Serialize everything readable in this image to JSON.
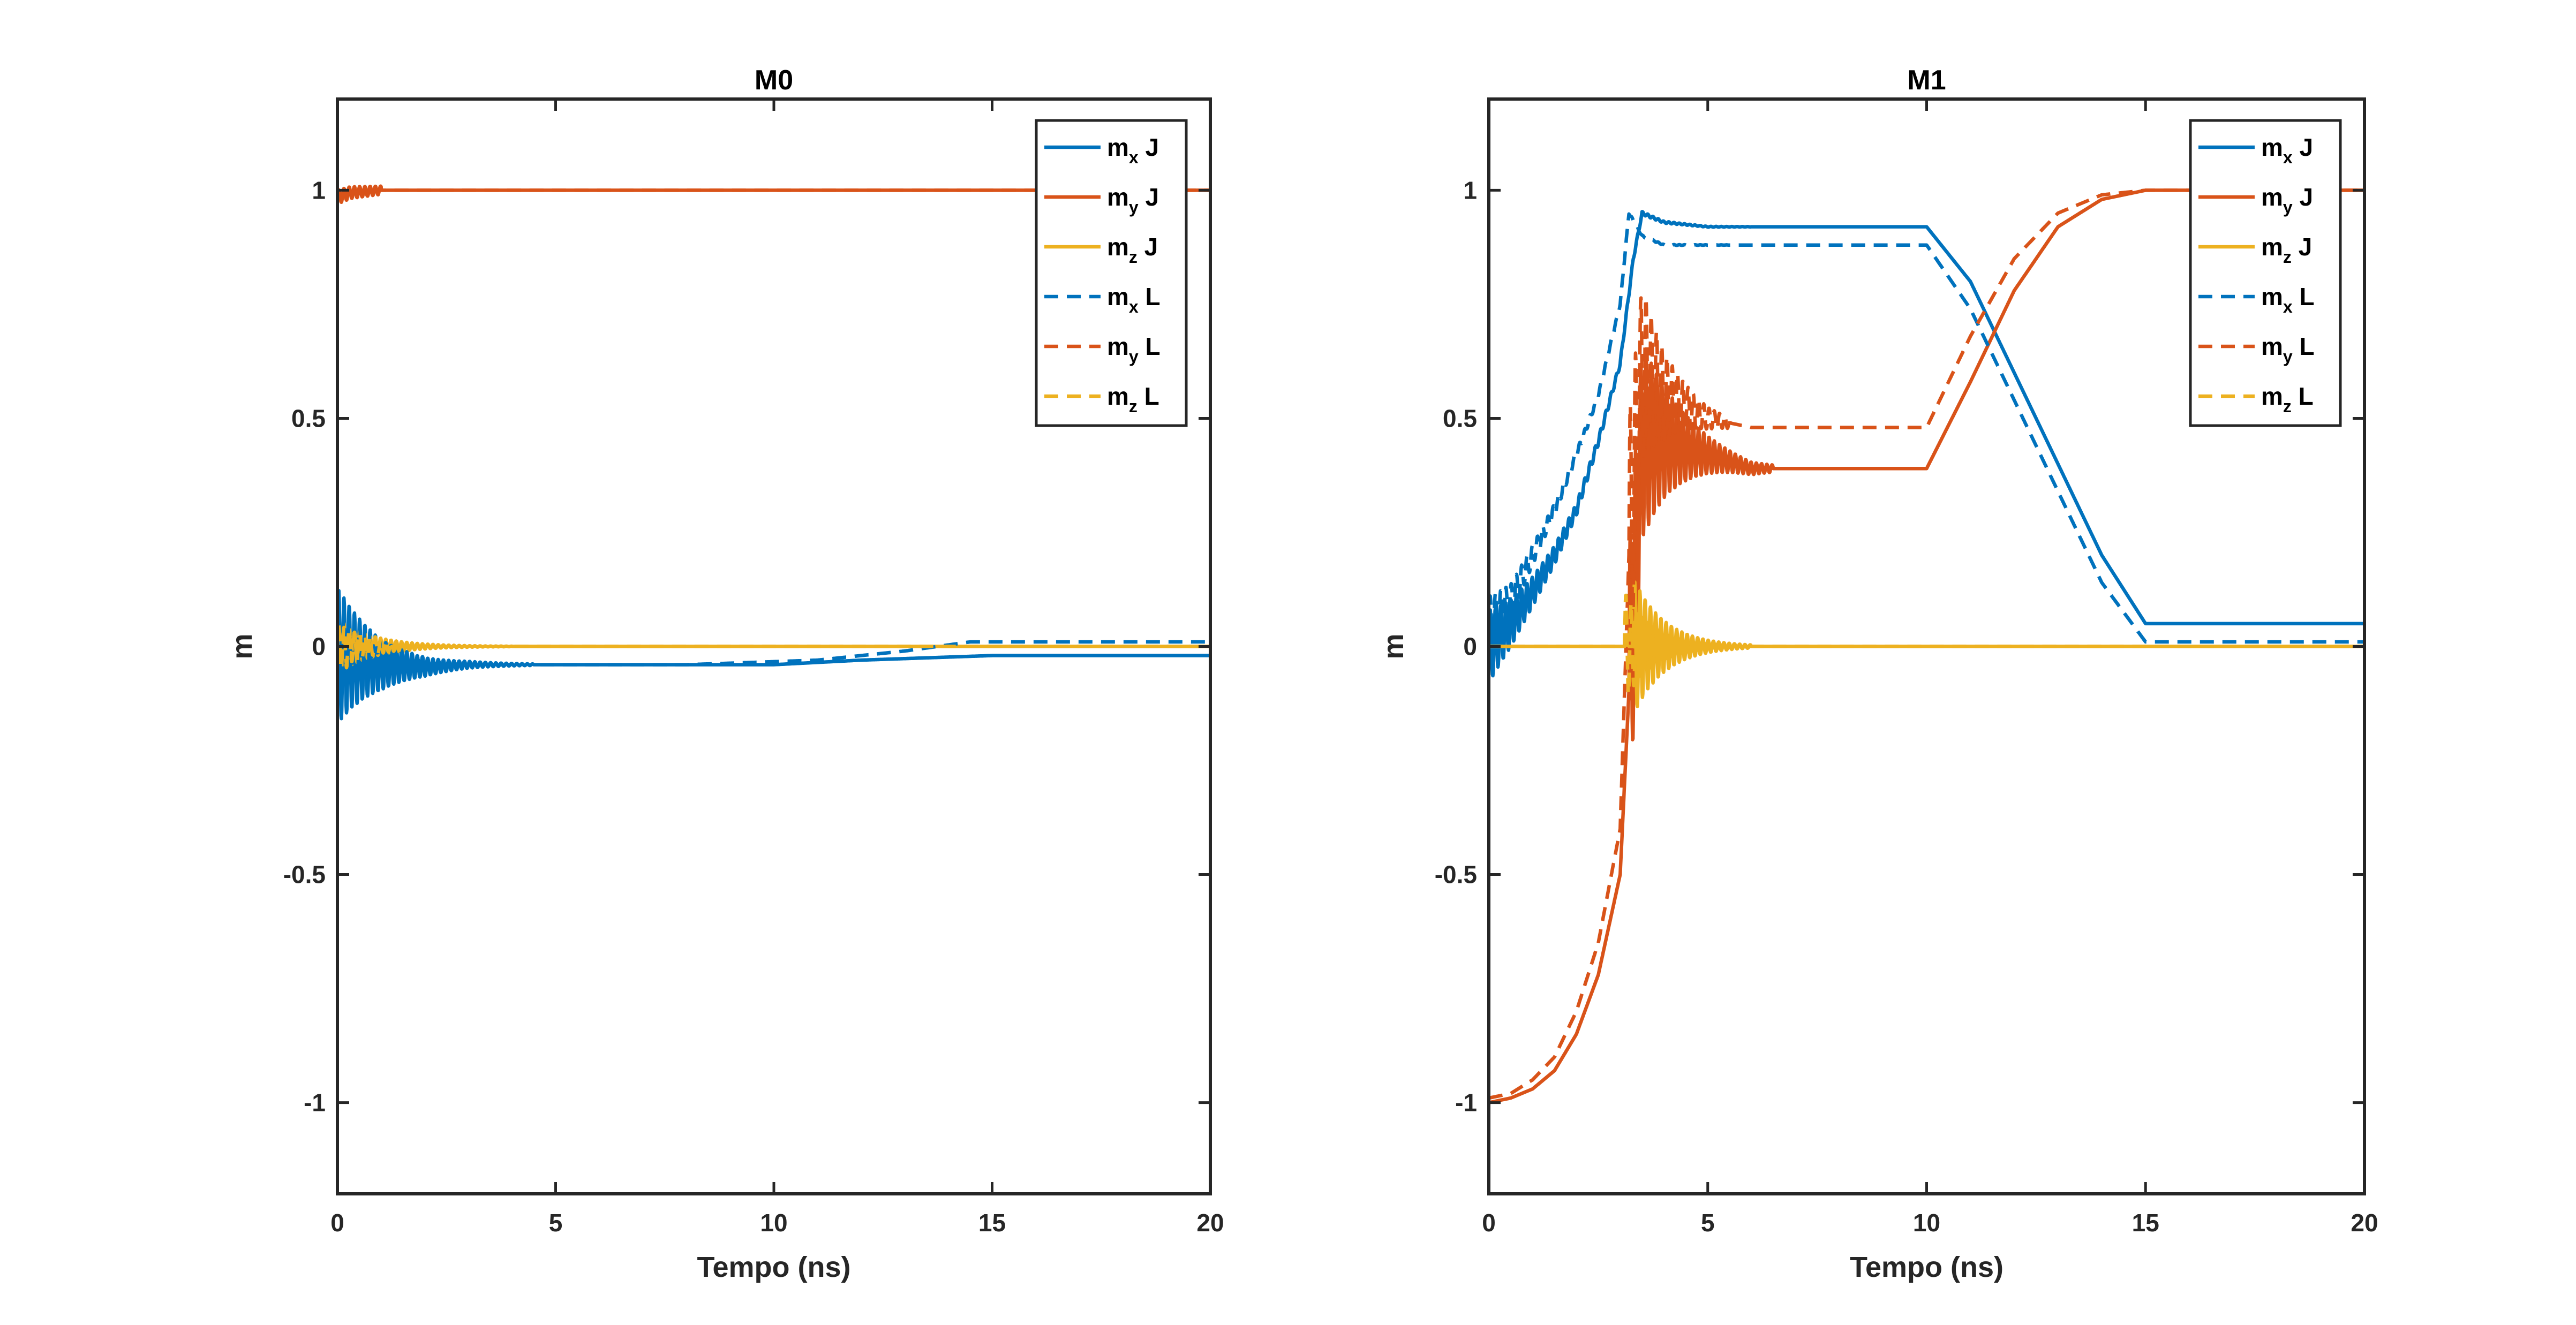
{
  "chart_data": [
    {
      "type": "line",
      "title": "M0",
      "xlabel": "Tempo (ns)",
      "ylabel": "m",
      "xlim": [
        0,
        20
      ],
      "ylim": [
        -1.2,
        1.2
      ],
      "xticks": [
        0,
        5,
        10,
        15,
        20
      ],
      "yticks": [
        -1,
        -0.5,
        0,
        0.5,
        1
      ],
      "xtick_labels": [
        "0",
        "5",
        "10",
        "15",
        "20"
      ],
      "ytick_labels": [
        "-1",
        "-0.5",
        "0",
        "0.5",
        "1"
      ],
      "legend_position": "top-right",
      "series": [
        {
          "name": "m_x J",
          "label_base": "m",
          "label_sub": "x",
          "label_suffix": "J",
          "color": "#0072BD",
          "dash": "solid",
          "x": [
            0,
            0.5,
            1,
            2,
            3,
            3.5,
            5,
            10,
            12,
            15,
            20
          ],
          "y": [
            -0.02,
            -0.03,
            -0.04,
            -0.045,
            -0.04,
            -0.04,
            -0.04,
            -0.04,
            -0.03,
            -0.02,
            -0.02
          ],
          "osc": {
            "start": 0,
            "end": 4.5,
            "amp": 0.15,
            "period": 0.12,
            "decay": 1.0
          }
        },
        {
          "name": "m_y J",
          "label_base": "m",
          "label_sub": "y",
          "label_suffix": "J",
          "color": "#D95319",
          "dash": "solid",
          "x": [
            0,
            0.3,
            1,
            20
          ],
          "y": [
            0.985,
            0.995,
            1.0,
            1.0
          ],
          "osc": {
            "start": 0,
            "end": 1,
            "amp": 0.015,
            "period": 0.12,
            "decay": 0.5
          }
        },
        {
          "name": "m_z J",
          "label_base": "m",
          "label_sub": "z",
          "label_suffix": "J",
          "color": "#EDB120",
          "dash": "solid",
          "x": [
            0,
            20
          ],
          "y": [
            0,
            0
          ],
          "osc": {
            "start": 0,
            "end": 4,
            "amp": 0.06,
            "period": 0.12,
            "decay": 1.2
          }
        },
        {
          "name": "m_x L",
          "label_base": "m",
          "label_sub": "x",
          "label_suffix": "L",
          "color": "#0072BD",
          "dash": "dashed",
          "x": [
            0,
            1,
            2,
            3,
            3.5,
            5,
            8,
            11,
            13,
            14.5,
            20
          ],
          "y": [
            -0.02,
            -0.03,
            -0.04,
            -0.04,
            -0.04,
            -0.04,
            -0.04,
            -0.03,
            -0.01,
            0.01,
            0.01
          ],
          "osc": {
            "start": 0,
            "end": 4.5,
            "amp": 0.12,
            "period": 0.12,
            "decay": 1.0
          }
        },
        {
          "name": "m_y L",
          "label_base": "m",
          "label_sub": "y",
          "label_suffix": "L",
          "color": "#D95319",
          "dash": "dashed",
          "x": [
            0,
            0.3,
            1,
            20
          ],
          "y": [
            0.985,
            0.995,
            1.0,
            1.0
          ],
          "osc": {
            "start": 0,
            "end": 1,
            "amp": 0.015,
            "period": 0.12,
            "decay": 0.5
          }
        },
        {
          "name": "m_z L",
          "label_base": "m",
          "label_sub": "z",
          "label_suffix": "L",
          "color": "#EDB120",
          "dash": "dashed",
          "x": [
            0,
            20
          ],
          "y": [
            0,
            0
          ],
          "osc": {
            "start": 0,
            "end": 4,
            "amp": 0.05,
            "period": 0.12,
            "decay": 1.2
          }
        }
      ]
    },
    {
      "type": "line",
      "title": "M1",
      "xlabel": "Tempo (ns)",
      "ylabel": "m",
      "xlim": [
        0,
        20
      ],
      "ylim": [
        -1.2,
        1.2
      ],
      "xticks": [
        0,
        5,
        10,
        15,
        20
      ],
      "yticks": [
        -1,
        -0.5,
        0,
        0.5,
        1
      ],
      "xtick_labels": [
        "0",
        "5",
        "10",
        "15",
        "20"
      ],
      "ytick_labels": [
        "-1",
        "-0.5",
        "0",
        "0.5",
        "1"
      ],
      "legend_position": "top-right",
      "series": [
        {
          "name": "m_x J",
          "label_base": "m",
          "label_sub": "x",
          "label_suffix": "J",
          "color": "#0072BD",
          "dash": "solid",
          "x": [
            0,
            0.5,
            1,
            1.5,
            2,
            2.5,
            3,
            3.3,
            3.5,
            4,
            5,
            6,
            8,
            10,
            11,
            12,
            13,
            14,
            15,
            20
          ],
          "y": [
            0.0,
            0.05,
            0.12,
            0.2,
            0.3,
            0.45,
            0.62,
            0.85,
            0.95,
            0.93,
            0.92,
            0.92,
            0.92,
            0.92,
            0.8,
            0.6,
            0.4,
            0.2,
            0.05,
            0.05
          ],
          "osc": {
            "start": 0,
            "end": 6,
            "amp": 0.08,
            "period": 0.12,
            "decay": 0.9
          }
        },
        {
          "name": "m_y J",
          "label_base": "m",
          "label_sub": "y",
          "label_suffix": "J",
          "color": "#D95319",
          "dash": "solid",
          "x": [
            0,
            0.5,
            1,
            1.5,
            2,
            2.5,
            3,
            3.2,
            3.5,
            4,
            5,
            6,
            8,
            10,
            11,
            12,
            13,
            14,
            15,
            20
          ],
          "y": [
            -1.0,
            -0.99,
            -0.97,
            -0.93,
            -0.85,
            -0.72,
            -0.5,
            -0.1,
            0.45,
            0.45,
            0.42,
            0.39,
            0.39,
            0.39,
            0.58,
            0.78,
            0.92,
            0.98,
            1.0,
            1.0
          ],
          "osc": {
            "start": 3.2,
            "end": 6.5,
            "amp": 0.3,
            "period": 0.12,
            "decay": 1.1
          }
        },
        {
          "name": "m_z J",
          "label_base": "m",
          "label_sub": "z",
          "label_suffix": "J",
          "color": "#EDB120",
          "dash": "solid",
          "x": [
            0,
            20
          ],
          "y": [
            0,
            0
          ],
          "osc": {
            "start": 3.3,
            "end": 6,
            "amp": 0.15,
            "period": 0.12,
            "decay": 1.4
          }
        },
        {
          "name": "m_x L",
          "label_base": "m",
          "label_sub": "x",
          "label_suffix": "L",
          "color": "#0072BD",
          "dash": "dashed",
          "x": [
            0,
            0.5,
            1,
            1.5,
            2,
            2.5,
            3,
            3.2,
            3.5,
            4,
            5,
            6,
            8,
            10,
            11,
            12,
            13,
            14,
            15,
            20
          ],
          "y": [
            0.05,
            0.1,
            0.2,
            0.3,
            0.42,
            0.55,
            0.75,
            0.95,
            0.9,
            0.88,
            0.88,
            0.88,
            0.88,
            0.88,
            0.74,
            0.54,
            0.34,
            0.14,
            0.01,
            0.01
          ],
          "osc": {
            "start": 0,
            "end": 5.5,
            "amp": 0.06,
            "period": 0.12,
            "decay": 1.0
          }
        },
        {
          "name": "m_y L",
          "label_base": "m",
          "label_sub": "y",
          "label_suffix": "L",
          "color": "#D95319",
          "dash": "dashed",
          "x": [
            0,
            0.5,
            1,
            1.5,
            2,
            2.5,
            3,
            3.2,
            3.5,
            4,
            5,
            6,
            8,
            10,
            11,
            12,
            13,
            14,
            15,
            20
          ],
          "y": [
            -0.99,
            -0.98,
            -0.95,
            -0.9,
            -0.8,
            -0.65,
            -0.4,
            0.2,
            0.6,
            0.55,
            0.5,
            0.48,
            0.48,
            0.48,
            0.68,
            0.85,
            0.95,
            0.99,
            1.0,
            1.0
          ],
          "osc": {
            "start": 3.2,
            "end": 5.5,
            "amp": 0.3,
            "period": 0.12,
            "decay": 1.4
          }
        },
        {
          "name": "m_z L",
          "label_base": "m",
          "label_sub": "z",
          "label_suffix": "L",
          "color": "#EDB120",
          "dash": "dashed",
          "x": [
            0,
            20
          ],
          "y": [
            0,
            0
          ],
          "osc": {
            "start": 3.1,
            "end": 5.5,
            "amp": 0.12,
            "period": 0.12,
            "decay": 1.6
          }
        }
      ]
    }
  ]
}
